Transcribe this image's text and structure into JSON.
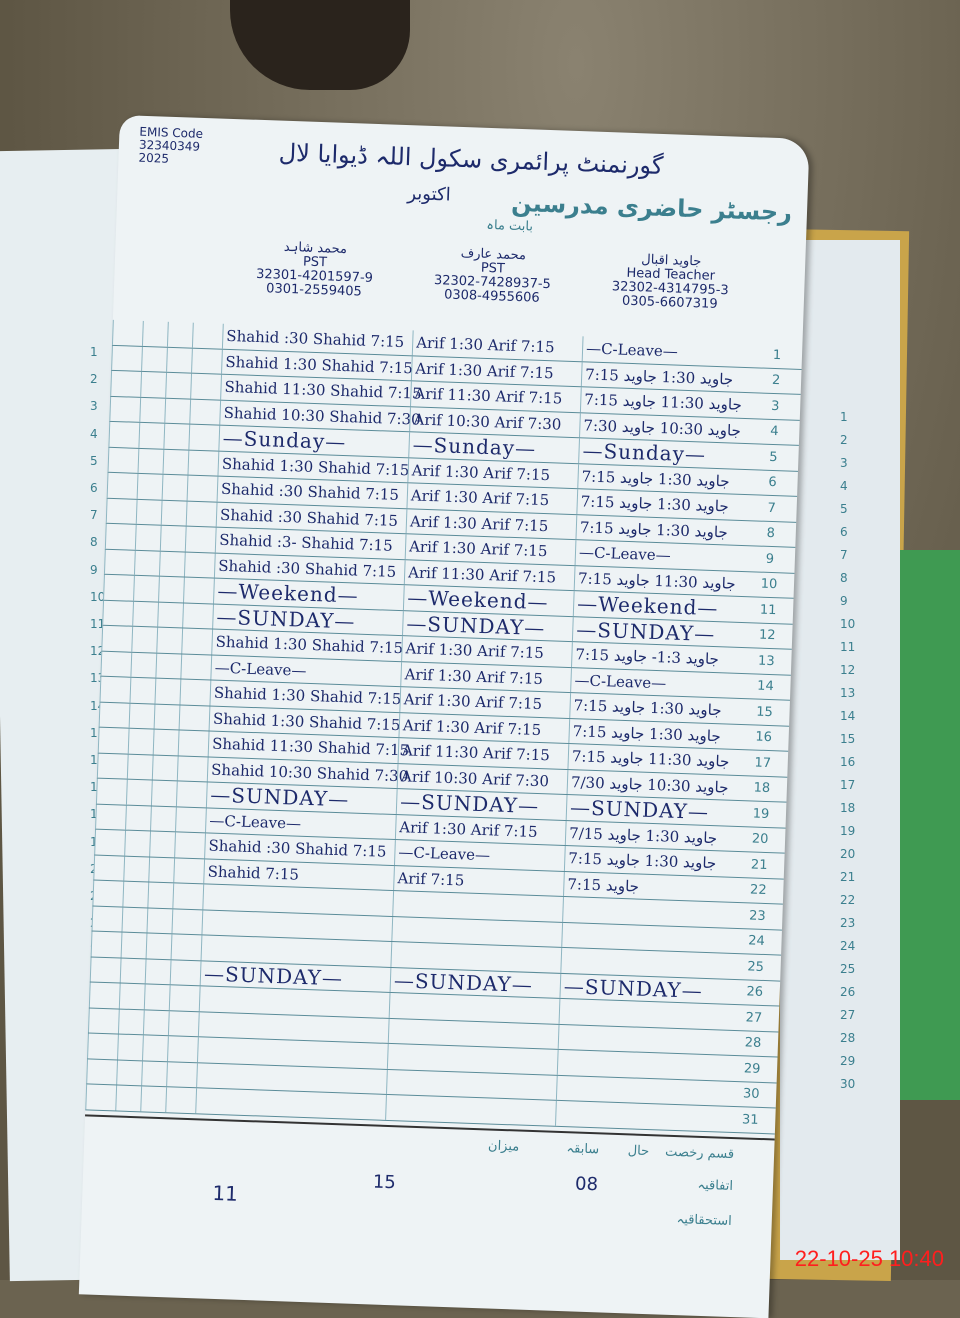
{
  "register": {
    "title": "رجسٹر حاضری مدرسین",
    "emis_label": "EMIS Code",
    "emis_code": "32340349",
    "year": "2025",
    "school": "گورنمنٹ پرائمری سکول اللہ ڈیوایا لال",
    "month_label": "بابت ماہ",
    "month": "اکتوبر",
    "teachers": [
      {
        "name": "محمد شاہد",
        "post": "PST",
        "cnic": "32301-4201597-9",
        "phone": "0301-2559405"
      },
      {
        "name": "محمد عارف",
        "post": "PST",
        "cnic": "32302-7428937-5",
        "phone": "0308-4955606"
      },
      {
        "name": "جاوید اقبال",
        "post": "Head Teacher",
        "cnic": "32302-4314795-3",
        "phone": "0305-6607319"
      }
    ],
    "days": [
      {
        "d": "1",
        "c": [
          "Shahid :30 Shahid 7:15",
          "Arif 1:30 Arif 7:15",
          "—C-Leave—"
        ]
      },
      {
        "d": "2",
        "c": [
          "Shahid 1:30 Shahid 7:15",
          "Arif 1:30 Arif 7:15",
          "جاوید 1:30 جاوید 7:15"
        ]
      },
      {
        "d": "3",
        "c": [
          "Shahid 11:30 Shahid 7:15",
          "Arif 11:30 Arif 7:15",
          "جاوید 11:30 جاوید 7:15"
        ]
      },
      {
        "d": "4",
        "c": [
          "Shahid 10:30 Shahid 7:30",
          "Arif 10:30 Arif 7:30",
          "جاوید 10:30 جاوید 7:30"
        ]
      },
      {
        "d": "5",
        "w": [
          "—Sunday—",
          "—Sunday—",
          "—Sunday—"
        ]
      },
      {
        "d": "6",
        "c": [
          "Shahid 1:30 Shahid 7:15",
          "Arif 1:30 Arif 7:15",
          "جاوید 1:30 جاوید 7:15"
        ]
      },
      {
        "d": "7",
        "c": [
          "Shahid :30 Shahid 7:15",
          "Arif 1:30 Arif 7:15",
          "جاوید 1:30 جاوید 7:15"
        ]
      },
      {
        "d": "8",
        "c": [
          "Shahid :30 Shahid 7:15",
          "Arif 1:30 Arif 7:15",
          "جاوید 1:30 جاوید 7:15"
        ]
      },
      {
        "d": "9",
        "c": [
          "Shahid :3- Shahid 7:15",
          "Arif 1:30 Arif 7:15",
          "—C-Leave—"
        ]
      },
      {
        "d": "10",
        "c": [
          "Shahid :30 Shahid 7:15",
          "Arif 11:30 Arif 7:15",
          "جاوید 11:30 جاوید 7:15"
        ]
      },
      {
        "d": "11",
        "w": [
          "—Weekend—",
          "—Weekend—",
          "—Weekend—"
        ]
      },
      {
        "d": "12",
        "w": [
          "—SUNDAY—",
          "—SUNDAY—",
          "—SUNDAY—"
        ]
      },
      {
        "d": "13",
        "c": [
          "Shahid 1:30 Shahid 7:15",
          "Arif 1:30 Arif 7:15",
          "جاوید 1:3- جاوید 7:15"
        ]
      },
      {
        "d": "14",
        "c": [
          "—C-Leave—",
          "Arif 1:30 Arif 7:15",
          "—C-Leave—"
        ]
      },
      {
        "d": "15",
        "c": [
          "Shahid 1:30 Shahid 7:15",
          "Arif 1:30 Arif 7:15",
          "جاوید 1:30 جاوید 7:15"
        ]
      },
      {
        "d": "16",
        "c": [
          "Shahid 1:30 Shahid 7:15",
          "Arif 1:30 Arif 7:15",
          "جاوید 1:30 جاوید 7:15"
        ]
      },
      {
        "d": "17",
        "c": [
          "Shahid 11:30 Shahid 7:15",
          "Arif 11:30 Arif 7:15",
          "جاوید 11:30 جاوید 7:15"
        ]
      },
      {
        "d": "18",
        "c": [
          "Shahid 10:30 Shahid 7:30",
          "Arif 10:30 Arif 7:30",
          "جاوید 10:30 جاوید 7/30"
        ]
      },
      {
        "d": "19",
        "w": [
          "—SUNDAY—",
          "—SUNDAY—",
          "—SUNDAY—"
        ]
      },
      {
        "d": "20",
        "c": [
          "—C-Leave—",
          "Arif 1:30 Arif 7:15",
          "جاوید 1:30 جاوید 7/15"
        ]
      },
      {
        "d": "21",
        "c": [
          "Shahid :30 Shahid 7:15",
          "—C-Leave—",
          "جاوید 1:30 جاوید 7:15"
        ]
      },
      {
        "d": "22",
        "c": [
          "Shahid 7:15",
          "Arif 7:15",
          "جاوید 7:15"
        ]
      },
      {
        "d": "23",
        "c": [
          "",
          "",
          ""
        ]
      },
      {
        "d": "24",
        "c": [
          "",
          "",
          ""
        ]
      },
      {
        "d": "25",
        "c": [
          "",
          "",
          ""
        ]
      },
      {
        "d": "26",
        "w": [
          "—SUNDAY—",
          "—SUNDAY—",
          "—SUNDAY—"
        ]
      },
      {
        "d": "27",
        "c": [
          "",
          "",
          ""
        ]
      },
      {
        "d": "28",
        "c": [
          "",
          "",
          ""
        ]
      },
      {
        "d": "29",
        "c": [
          "",
          "",
          ""
        ]
      },
      {
        "d": "30",
        "c": [
          "",
          "",
          ""
        ]
      },
      {
        "d": "31",
        "c": [
          "",
          "",
          ""
        ]
      }
    ],
    "summary": {
      "leave_type": "قسم رخصت",
      "casual": "اتفاقیہ",
      "earned": "استحقاقیہ",
      "current": "حال",
      "previous": "سابقہ",
      "total": "میزان",
      "values": [
        "08",
        "15",
        "11"
      ]
    }
  },
  "timestamp": "22-10-25 10:40"
}
